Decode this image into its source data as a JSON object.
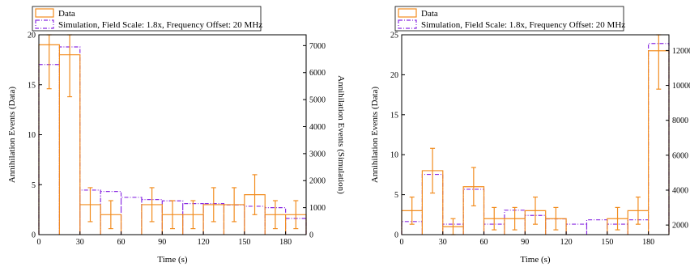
{
  "colors": {
    "data": "#f28c1e",
    "sim": "#8a2be2",
    "axis": "#000000"
  },
  "chart_data": [
    {
      "type": "bar",
      "xlabel": "Time (s)",
      "ylabel_left": "Annihilation Events (Data)",
      "ylabel_right": "Annihilation Events (Simulation)",
      "xlim": [
        0,
        195
      ],
      "ylim_left": [
        0,
        20
      ],
      "ylim_right": [
        0,
        7400
      ],
      "xticks": [
        0,
        30,
        60,
        90,
        120,
        150,
        180
      ],
      "yticks_left": [
        0,
        5,
        10,
        15,
        20
      ],
      "yticks_right": [
        0,
        1000,
        2000,
        3000,
        4000,
        5000,
        6000,
        7000
      ],
      "legend": {
        "position": "top-left",
        "entries": [
          "Data",
          "Simulation, Field Scale: 1.8x, Frequency Offset: 20 MHz"
        ]
      },
      "series": [
        {
          "name": "Data",
          "axis": "left",
          "bins": [
            [
              0,
              15
            ],
            [
              15,
              30
            ],
            [
              30,
              45
            ],
            [
              45,
              60
            ],
            [
              75,
              90
            ],
            [
              90,
              105
            ],
            [
              105,
              120
            ],
            [
              120,
              135
            ],
            [
              135,
              150
            ],
            [
              150,
              165
            ],
            [
              165,
              180
            ],
            [
              180,
              195
            ]
          ],
          "values": [
            19,
            18,
            3,
            2,
            3,
            2,
            2,
            3,
            3,
            4,
            2,
            2
          ],
          "errors": [
            4.4,
            4.2,
            1.7,
            1.4,
            1.7,
            1.4,
            1.4,
            1.7,
            1.7,
            2.0,
            1.4,
            1.4
          ]
        },
        {
          "name": "Simulation, Field Scale: 1.8x, Frequency Offset: 20 MHz",
          "axis": "right",
          "bins": [
            [
              0,
              15
            ],
            [
              15,
              30
            ],
            [
              30,
              45
            ],
            [
              45,
              60
            ],
            [
              60,
              75
            ],
            [
              75,
              90
            ],
            [
              90,
              105
            ],
            [
              105,
              120
            ],
            [
              120,
              135
            ],
            [
              135,
              150
            ],
            [
              150,
              165
            ],
            [
              165,
              180
            ],
            [
              180,
              195
            ]
          ],
          "values": [
            6300,
            6950,
            1650,
            1600,
            1380,
            1300,
            1250,
            1150,
            1150,
            1100,
            1050,
            1000,
            600
          ]
        }
      ]
    },
    {
      "type": "bar",
      "xlabel": "Time (s)",
      "ylabel_left": "Annihilation Events (Data)",
      "ylabel_right": "Annihilation Events (Simulation)",
      "xlim": [
        0,
        195
      ],
      "ylim_left": [
        0,
        25
      ],
      "ylim_right": [
        1450,
        12900
      ],
      "xticks": [
        0,
        30,
        60,
        90,
        120,
        150,
        180
      ],
      "yticks_left": [
        0,
        5,
        10,
        15,
        20,
        25
      ],
      "yticks_right": [
        2000,
        4000,
        6000,
        8000,
        10000,
        12000
      ],
      "legend": {
        "position": "top-left",
        "entries": [
          "Data",
          "Simulation, Field Scale: 1.8x, Frequency Offset: 20 MHz"
        ]
      },
      "series": [
        {
          "name": "Data",
          "axis": "left",
          "bins": [
            [
              0,
              15
            ],
            [
              15,
              30
            ],
            [
              30,
              45
            ],
            [
              45,
              60
            ],
            [
              60,
              75
            ],
            [
              75,
              90
            ],
            [
              90,
              105
            ],
            [
              105,
              120
            ],
            [
              150,
              165
            ],
            [
              165,
              180
            ],
            [
              180,
              195
            ]
          ],
          "values": [
            3,
            8,
            1,
            6,
            2,
            2,
            3,
            2,
            2,
            3,
            23
          ],
          "errors": [
            1.7,
            2.8,
            1.0,
            2.4,
            1.4,
            1.4,
            1.7,
            1.4,
            1.4,
            1.7,
            4.8
          ]
        },
        {
          "name": "Simulation, Field Scale: 1.8x, Frequency Offset: 20 MHz",
          "axis": "right",
          "bins": [
            [
              0,
              15
            ],
            [
              15,
              30
            ],
            [
              30,
              45
            ],
            [
              45,
              60
            ],
            [
              60,
              75
            ],
            [
              75,
              90
            ],
            [
              90,
              105
            ],
            [
              105,
              120
            ],
            [
              120,
              135
            ],
            [
              135,
              150
            ],
            [
              150,
              165
            ],
            [
              165,
              180
            ],
            [
              180,
              195
            ]
          ],
          "values": [
            2200,
            4900,
            2050,
            4050,
            2050,
            2850,
            2550,
            2350,
            2050,
            2300,
            2050,
            2300,
            12400
          ]
        }
      ]
    }
  ]
}
